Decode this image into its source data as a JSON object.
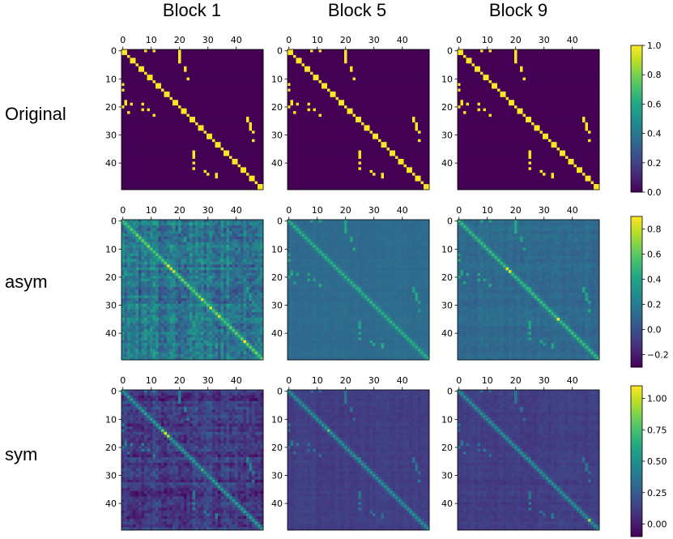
{
  "chart_data": {
    "type": "heatmap",
    "title": "",
    "columns": [
      "Block 1",
      "Block 5",
      "Block 9"
    ],
    "rows": [
      {
        "label": "Original",
        "colorbar": {
          "range": [
            0.0,
            1.0
          ],
          "ticks": [
            0.0,
            0.2,
            0.4,
            0.6,
            0.8,
            1.0
          ],
          "tick_labels": [
            "0.0",
            "0.2",
            "0.4",
            "0.6",
            "0.8",
            "1.0"
          ]
        },
        "panels": [
          {
            "block": "Block 1",
            "diagonal": 1.0,
            "background": 0.0,
            "offdiag_level": 1.0,
            "noise": 0.0
          },
          {
            "block": "Block 5",
            "diagonal": 1.0,
            "background": 0.0,
            "offdiag_level": 1.0,
            "noise": 0.0
          },
          {
            "block": "Block 9",
            "diagonal": 1.0,
            "background": 0.0,
            "offdiag_level": 1.0,
            "noise": 0.0
          }
        ]
      },
      {
        "label": "asym",
        "colorbar": {
          "range": [
            -0.3,
            0.9
          ],
          "ticks": [
            -0.2,
            0.0,
            0.2,
            0.4,
            0.6,
            0.8
          ],
          "tick_labels": [
            "−0.2",
            "0.0",
            "0.2",
            "0.4",
            "0.6",
            "0.8"
          ]
        },
        "panels": [
          {
            "block": "Block 1",
            "diagonal": 0.6,
            "background": 0.15,
            "offdiag_level": 0.35,
            "noise": 0.3,
            "hot": [
              [
                16,
                16,
                0.85
              ],
              [
                17,
                17,
                0.8
              ],
              [
                18,
                18,
                0.8
              ],
              [
                28,
                28,
                0.8
              ],
              [
                31,
                31,
                0.85
              ],
              [
                34,
                34,
                0.8
              ],
              [
                43,
                43,
                0.9
              ]
            ]
          },
          {
            "block": "Block 5",
            "diagonal": 0.45,
            "background": 0.12,
            "offdiag_level": 0.4,
            "noise": 0.04,
            "hot": []
          },
          {
            "block": "Block 9",
            "diagonal": 0.5,
            "background": 0.12,
            "offdiag_level": 0.4,
            "noise": 0.08,
            "hot": [
              [
                17,
                17,
                0.85
              ],
              [
                18,
                18,
                0.85
              ],
              [
                35,
                35,
                0.9
              ]
            ]
          }
        ]
      },
      {
        "label": "sym",
        "colorbar": {
          "range": [
            -0.1,
            1.1
          ],
          "ticks": [
            0.0,
            0.25,
            0.5,
            0.75,
            1.0
          ],
          "tick_labels": [
            "0.00",
            "0.25",
            "0.50",
            "0.75",
            "1.00"
          ]
        },
        "panels": [
          {
            "block": "Block 1",
            "diagonal": 0.55,
            "background": 0.1,
            "offdiag_level": 0.4,
            "noise": 0.22,
            "hot": [
              [
                15,
                15,
                1.05
              ],
              [
                16,
                16,
                0.95
              ],
              [
                14,
                14,
                0.8
              ],
              [
                28,
                28,
                0.7
              ]
            ]
          },
          {
            "block": "Block 5",
            "diagonal": 0.5,
            "background": 0.12,
            "offdiag_level": 0.35,
            "noise": 0.05,
            "hot": [
              [
                14,
                14,
                0.75
              ]
            ]
          },
          {
            "block": "Block 9",
            "diagonal": 0.5,
            "background": 0.12,
            "offdiag_level": 0.35,
            "noise": 0.06,
            "hot": [
              [
                46,
                46,
                0.9
              ]
            ]
          }
        ]
      }
    ],
    "matrix_size": 50,
    "axis_ticks": [
      0,
      10,
      20,
      30,
      40
    ],
    "y_axis_ticks": [
      0,
      10,
      20,
      30,
      40
    ],
    "colormap": "viridis",
    "original_offdiag_edges": [
      [
        0,
        8
      ],
      [
        0,
        11
      ],
      [
        0,
        20
      ],
      [
        1,
        20
      ],
      [
        2,
        20
      ],
      [
        3,
        20
      ],
      [
        4,
        20
      ],
      [
        6,
        22
      ],
      [
        7,
        22
      ],
      [
        10,
        23
      ],
      [
        12,
        0
      ],
      [
        14,
        0
      ],
      [
        18,
        1
      ],
      [
        19,
        1
      ],
      [
        19,
        3
      ],
      [
        19,
        7
      ],
      [
        20,
        0
      ],
      [
        21,
        7
      ],
      [
        21,
        9
      ],
      [
        22,
        2
      ],
      [
        23,
        11
      ],
      [
        24,
        25
      ],
      [
        24,
        44
      ],
      [
        25,
        44
      ],
      [
        26,
        45
      ],
      [
        27,
        45
      ],
      [
        28,
        45
      ],
      [
        29,
        46
      ],
      [
        32,
        46
      ],
      [
        36,
        25
      ],
      [
        37,
        25
      ],
      [
        38,
        25
      ],
      [
        40,
        25
      ],
      [
        42,
        25
      ],
      [
        43,
        29
      ],
      [
        44,
        30
      ],
      [
        44,
        33
      ],
      [
        45,
        33
      ]
    ]
  }
}
